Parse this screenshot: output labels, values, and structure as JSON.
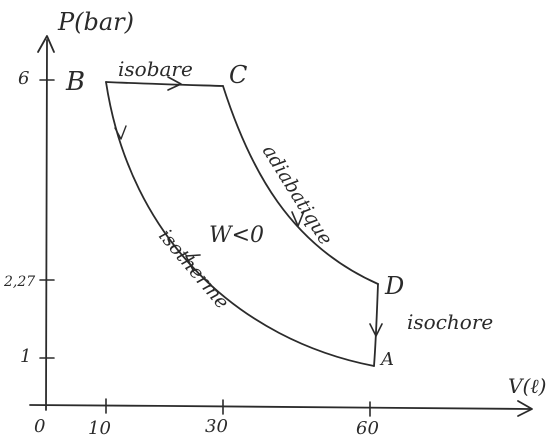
{
  "axes": {
    "y_label": "P(bar)",
    "x_label": "V(ℓ)",
    "origin": "0",
    "x_ticks": [
      "10",
      "30",
      "60"
    ],
    "y_ticks": [
      "6",
      "2,27",
      "1"
    ]
  },
  "points": {
    "a": "A",
    "b": "B",
    "c": "C",
    "d": "D"
  },
  "processes": {
    "bc": "isobare",
    "cd": "adiabatique",
    "da": "isochore",
    "ab": "isotherme"
  },
  "work": "W<0"
}
